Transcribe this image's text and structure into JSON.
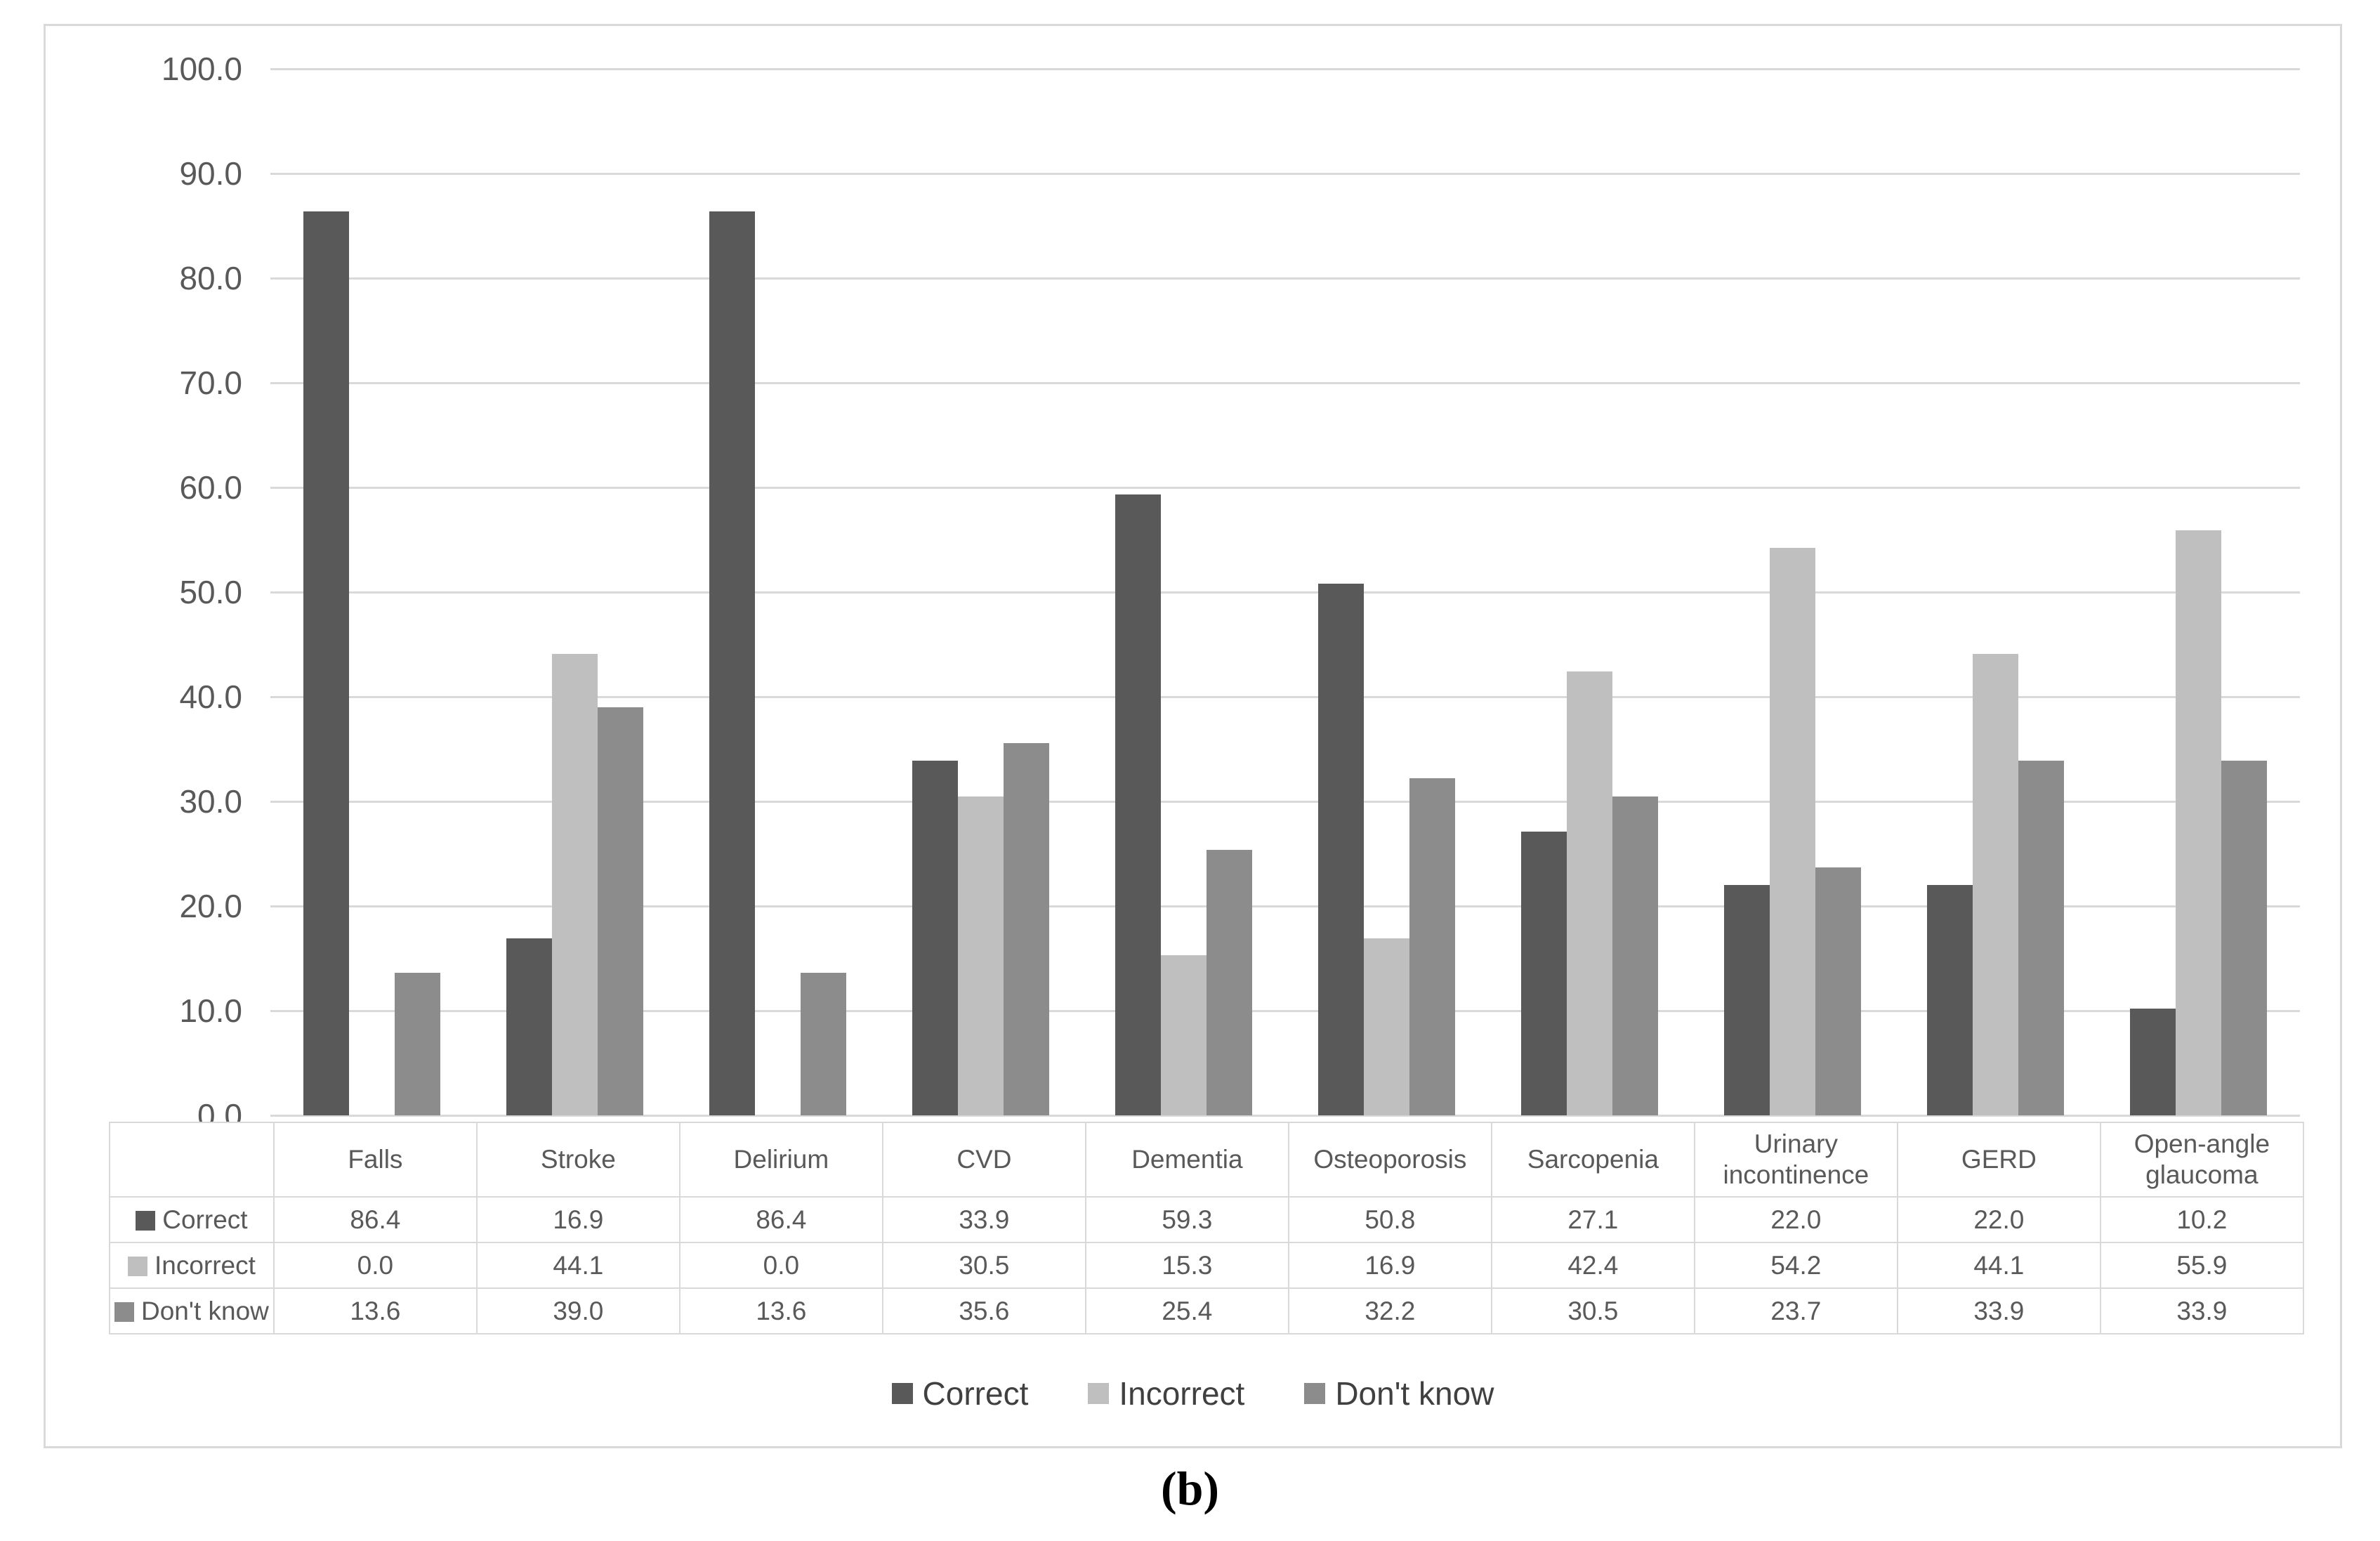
{
  "figure_caption": "(b)",
  "chart_data": {
    "type": "bar",
    "title": "",
    "xlabel": "",
    "ylabel": "",
    "categories": [
      "Falls",
      "Stroke",
      "Delirium",
      "CVD",
      "Dementia",
      "Osteoporosis",
      "Sarcopenia",
      "Urinary incontinence",
      "GERD",
      "Open-angle glaucoma"
    ],
    "series": [
      {
        "name": "Correct",
        "color": "#595959",
        "values": [
          86.4,
          16.9,
          86.4,
          33.9,
          59.3,
          50.8,
          27.1,
          22.0,
          22.0,
          10.2
        ]
      },
      {
        "name": "Incorrect",
        "color": "#BFBFBF",
        "values": [
          0.0,
          44.1,
          0.0,
          30.5,
          15.3,
          16.9,
          42.4,
          54.2,
          44.1,
          55.9
        ]
      },
      {
        "name": "Don't know",
        "color": "#8C8C8C",
        "values": [
          13.6,
          39.0,
          13.6,
          35.6,
          25.4,
          32.2,
          30.5,
          23.7,
          33.9,
          33.9
        ]
      }
    ],
    "ylim": [
      0,
      100
    ],
    "ytick_labels": [
      "0.0",
      "10.0",
      "20.0",
      "30.0",
      "40.0",
      "50.0",
      "60.0",
      "70.0",
      "80.0",
      "90.0",
      "100.0"
    ],
    "grid": true,
    "gridline_color": "#D9D9D9",
    "legend_position": "bottom",
    "data_table_shown": true,
    "value_format": "one_decimal"
  }
}
